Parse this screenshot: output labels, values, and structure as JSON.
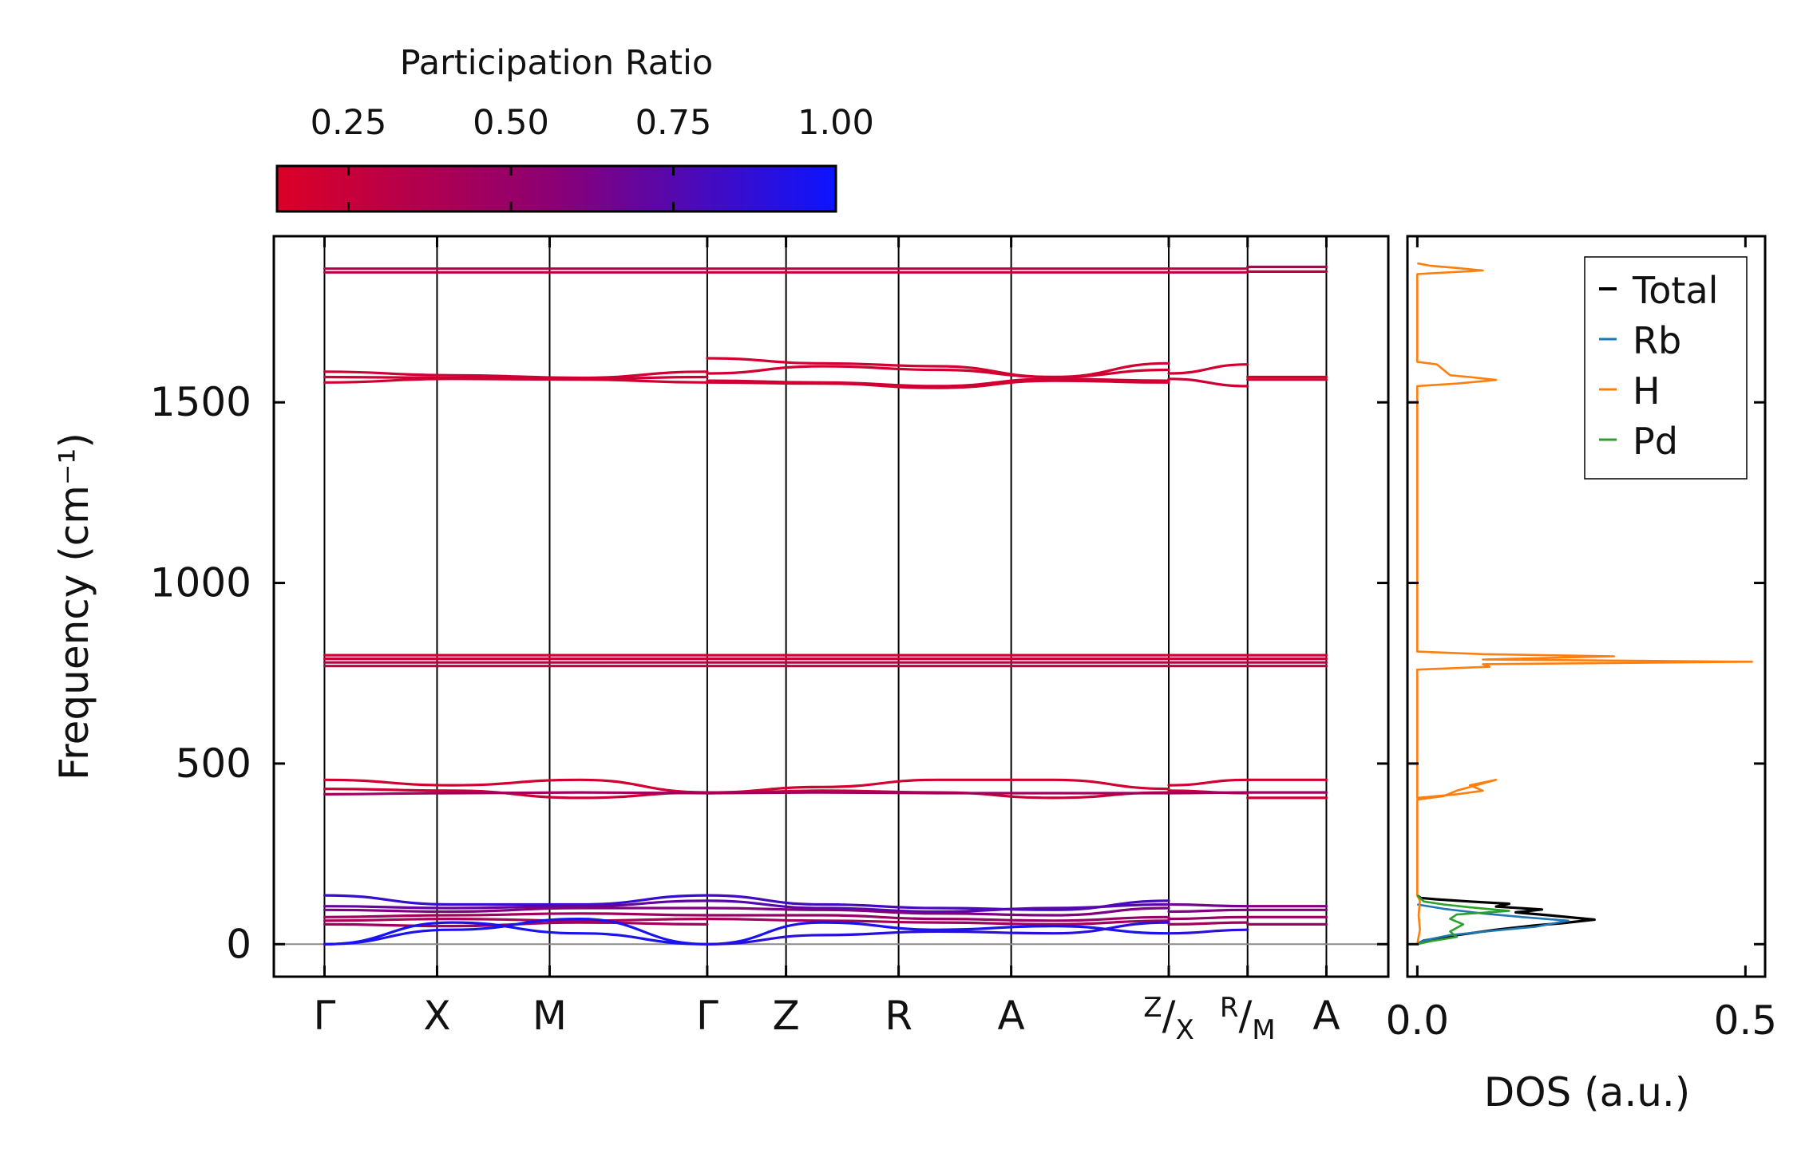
{
  "colorbar": {
    "title": "Participation Ratio",
    "ticks": [
      0.25,
      0.5,
      0.75,
      1.0
    ],
    "tick_labels": [
      "0.25",
      "0.50",
      "0.75",
      "1.00"
    ],
    "range": [
      0.14,
      1.0
    ],
    "colors": {
      "low": "#dc0026",
      "mid": "#8a0074",
      "high": "#0b14ff"
    }
  },
  "chart_data": [
    {
      "type": "line",
      "name": "phonon-band-structure",
      "ylabel": "Frequency (cm⁻¹)",
      "ylim": [
        -90,
        1960
      ],
      "yticks": [
        0,
        500,
        1000,
        1500
      ],
      "ytick_labels": [
        "0",
        "500",
        "1000",
        "1500"
      ],
      "xlim": [
        -0.45,
        9.45
      ],
      "kpoints": [
        {
          "pos": 0,
          "label": "Γ"
        },
        {
          "pos": 1,
          "label": "X"
        },
        {
          "pos": 2,
          "label": "M"
        },
        {
          "pos": 3.4,
          "label": "Γ"
        },
        {
          "pos": 4.1,
          "label": "Z"
        },
        {
          "pos": 5.1,
          "label": "R"
        },
        {
          "pos": 6.1,
          "label": "A"
        },
        {
          "pos": 7.5,
          "label": "Z/X",
          "top": "Z",
          "bottom": "X"
        },
        {
          "pos": 8.2,
          "label": "R/M",
          "top": "R",
          "bottom": "M"
        },
        {
          "pos": 8.9,
          "label": "A"
        }
      ],
      "zero_line": 0,
      "segments": [
        {
          "from": 0,
          "to": 3.4,
          "bands": [
            {
              "y": [
                1870,
                1870,
                1870,
                1870
              ],
              "pr": 0.35
            },
            {
              "y": [
                1860,
                1860,
                1860,
                1860
              ],
              "pr": 0.3
            },
            {
              "y": [
                1585,
                1575,
                1568,
                1585
              ],
              "pr": 0.22
            },
            {
              "y": [
                1570,
                1568,
                1565,
                1570
              ],
              "pr": 0.22
            },
            {
              "y": [
                1555,
                1565,
                1563,
                1555
              ],
              "pr": 0.2
            },
            {
              "y": [
                800,
                800,
                800,
                800
              ],
              "pr": 0.2
            },
            {
              "y": [
                790,
                790,
                790,
                790
              ],
              "pr": 0.25
            },
            {
              "y": [
                780,
                780,
                780,
                780
              ],
              "pr": 0.3
            },
            {
              "y": [
                770,
                770,
                770,
                770
              ],
              "pr": 0.3
            },
            {
              "y": [
                455,
                440,
                455,
                420
              ],
              "pr": 0.2
            },
            {
              "y": [
                430,
                425,
                405,
                420
              ],
              "pr": 0.22
            },
            {
              "y": [
                415,
                418,
                420,
                418
              ],
              "pr": 0.45
            },
            {
              "y": [
                135,
                110,
                110,
                135
              ],
              "pr": 0.85
            },
            {
              "y": [
                105,
                100,
                105,
                120
              ],
              "pr": 0.7
            },
            {
              "y": [
                95,
                90,
                100,
                100
              ],
              "pr": 0.6
            },
            {
              "y": [
                75,
                80,
                85,
                80
              ],
              "pr": 0.45
            },
            {
              "y": [
                65,
                70,
                65,
                70
              ],
              "pr": 0.4
            },
            {
              "y": [
                55,
                50,
                60,
                55
              ],
              "pr": 0.45
            },
            {
              "y": [
                0,
                40,
                70,
                0
              ],
              "pr": 0.95
            },
            {
              "y": [
                0,
                60,
                30,
                0
              ],
              "pr": 0.95
            }
          ]
        },
        {
          "from": 3.4,
          "to": 7.5,
          "bands": [
            {
              "y": [
                1870,
                1870,
                1870,
                1870,
                1870
              ],
              "pr": 0.3
            },
            {
              "y": [
                1860,
                1860,
                1860,
                1860,
                1860
              ],
              "pr": 0.25
            },
            {
              "y": [
                1622,
                1608,
                1600,
                1570,
                1608
              ],
              "pr": 0.2
            },
            {
              "y": [
                1580,
                1600,
                1590,
                1570,
                1590
              ],
              "pr": 0.2
            },
            {
              "y": [
                1560,
                1555,
                1545,
                1565,
                1560
              ],
              "pr": 0.22
            },
            {
              "y": [
                1555,
                1552,
                1540,
                1560,
                1555
              ],
              "pr": 0.2
            },
            {
              "y": [
                800,
                800,
                800,
                800,
                800
              ],
              "pr": 0.2
            },
            {
              "y": [
                790,
                790,
                790,
                790,
                790
              ],
              "pr": 0.25
            },
            {
              "y": [
                780,
                780,
                780,
                780,
                780
              ],
              "pr": 0.3
            },
            {
              "y": [
                770,
                770,
                770,
                770,
                770
              ],
              "pr": 0.3
            },
            {
              "y": [
                420,
                435,
                455,
                455,
                430
              ],
              "pr": 0.2
            },
            {
              "y": [
                418,
                425,
                420,
                405,
                420
              ],
              "pr": 0.25
            },
            {
              "y": [
                418,
                420,
                418,
                418,
                418
              ],
              "pr": 0.45
            },
            {
              "y": [
                135,
                110,
                100,
                95,
                120
              ],
              "pr": 0.8
            },
            {
              "y": [
                120,
                100,
                90,
                100,
                110
              ],
              "pr": 0.75
            },
            {
              "y": [
                100,
                95,
                85,
                80,
                100
              ],
              "pr": 0.6
            },
            {
              "y": [
                80,
                80,
                70,
                65,
                75
              ],
              "pr": 0.5
            },
            {
              "y": [
                70,
                65,
                60,
                55,
                65
              ],
              "pr": 0.45
            },
            {
              "y": [
                0,
                60,
                40,
                50,
                30
              ],
              "pr": 0.95
            },
            {
              "y": [
                0,
                25,
                35,
                30,
                60
              ],
              "pr": 0.9
            }
          ]
        },
        {
          "from": 7.5,
          "to": 8.2,
          "bands": [
            {
              "y": [
                1870,
                1870
              ],
              "pr": 0.3
            },
            {
              "y": [
                1860,
                1860
              ],
              "pr": 0.3
            },
            {
              "y": [
                1580,
                1605
              ],
              "pr": 0.2
            },
            {
              "y": [
                1565,
                1545
              ],
              "pr": 0.22
            },
            {
              "y": [
                800,
                800
              ],
              "pr": 0.2
            },
            {
              "y": [
                790,
                790
              ],
              "pr": 0.25
            },
            {
              "y": [
                780,
                780
              ],
              "pr": 0.3
            },
            {
              "y": [
                770,
                770
              ],
              "pr": 0.3
            },
            {
              "y": [
                440,
                455
              ],
              "pr": 0.2
            },
            {
              "y": [
                425,
                418
              ],
              "pr": 0.25
            },
            {
              "y": [
                418,
                420
              ],
              "pr": 0.45
            },
            {
              "y": [
                110,
                105
              ],
              "pr": 0.65
            },
            {
              "y": [
                90,
                95
              ],
              "pr": 0.6
            },
            {
              "y": [
                70,
                75
              ],
              "pr": 0.5
            },
            {
              "y": [
                55,
                60
              ],
              "pr": 0.45
            },
            {
              "y": [
                30,
                40
              ],
              "pr": 0.9
            }
          ]
        },
        {
          "from": 8.2,
          "to": 8.9,
          "bands": [
            {
              "y": [
                1875,
                1875
              ],
              "pr": 0.35
            },
            {
              "y": [
                1862,
                1862
              ],
              "pr": 0.3
            },
            {
              "y": [
                1570,
                1570
              ],
              "pr": 0.2
            },
            {
              "y": [
                1563,
                1563
              ],
              "pr": 0.2
            },
            {
              "y": [
                800,
                800
              ],
              "pr": 0.2
            },
            {
              "y": [
                790,
                790
              ],
              "pr": 0.25
            },
            {
              "y": [
                780,
                780
              ],
              "pr": 0.3
            },
            {
              "y": [
                770,
                770
              ],
              "pr": 0.3
            },
            {
              "y": [
                455,
                455
              ],
              "pr": 0.2
            },
            {
              "y": [
                420,
                420
              ],
              "pr": 0.45
            },
            {
              "y": [
                405,
                405
              ],
              "pr": 0.22
            },
            {
              "y": [
                105,
                105
              ],
              "pr": 0.6
            },
            {
              "y": [
                95,
                95
              ],
              "pr": 0.6
            },
            {
              "y": [
                75,
                75
              ],
              "pr": 0.5
            },
            {
              "y": [
                55,
                55
              ],
              "pr": 0.45
            }
          ]
        }
      ]
    },
    {
      "type": "line",
      "name": "phonon-dos",
      "xlabel": "DOS (a.u.)",
      "xlim": [
        -0.015,
        0.53
      ],
      "ylim": [
        -90,
        1960
      ],
      "xticks": [
        0.0,
        0.5
      ],
      "xtick_labels": [
        "0.0",
        "0.5"
      ],
      "legend": {
        "placement": "top-right",
        "entries": [
          "Total",
          "Rb",
          "H",
          "Pd"
        ]
      },
      "series": [
        {
          "name": "Total",
          "color": "#000000",
          "points": [
            [
              0,
              0
            ],
            [
              0.01,
              10
            ],
            [
              0.06,
              25
            ],
            [
              0.12,
              40
            ],
            [
              0.18,
              52
            ],
            [
              0.22,
              58
            ],
            [
              0.27,
              68
            ],
            [
              0.2,
              80
            ],
            [
              0.15,
              88
            ],
            [
              0.19,
              96
            ],
            [
              0.12,
              104
            ],
            [
              0.14,
              112
            ],
            [
              0.08,
              118
            ],
            [
              0.03,
              124
            ],
            [
              0.005,
              128
            ],
            [
              0,
              135
            ]
          ]
        },
        {
          "name": "Rb",
          "color": "#1f77b4",
          "points": [
            [
              0,
              0
            ],
            [
              0.01,
              10
            ],
            [
              0.05,
              25
            ],
            [
              0.12,
              38
            ],
            [
              0.18,
              48
            ],
            [
              0.2,
              55
            ],
            [
              0.23,
              65
            ],
            [
              0.16,
              75
            ],
            [
              0.1,
              85
            ],
            [
              0.04,
              98
            ],
            [
              0,
              110
            ]
          ]
        },
        {
          "name": "H",
          "color": "#ff7f0e",
          "points": [
            [
              0,
              0
            ],
            [
              0.004,
              40
            ],
            [
              0.002,
              80
            ],
            [
              0.004,
              120
            ],
            [
              0,
              135
            ],
            [
              0,
              400
            ],
            [
              0.04,
              410
            ],
            [
              0.06,
              425
            ],
            [
              0.12,
              455
            ],
            [
              0.08,
              440
            ],
            [
              0.1,
              425
            ],
            [
              0.06,
              415
            ],
            [
              0,
              405
            ],
            [
              0,
              760
            ],
            [
              0.11,
              768
            ],
            [
              0.1,
              775
            ],
            [
              0.51,
              782
            ],
            [
              0.1,
              788
            ],
            [
              0.3,
              797
            ],
            [
              0.1,
              803
            ],
            [
              0,
              810
            ],
            [
              0,
              1545
            ],
            [
              0.06,
              1552
            ],
            [
              0.12,
              1562
            ],
            [
              0.08,
              1570
            ],
            [
              0.05,
              1575
            ],
            [
              0.04,
              1590
            ],
            [
              0.03,
              1605
            ],
            [
              0,
              1612
            ],
            [
              0,
              1855
            ],
            [
              0.1,
              1865
            ],
            [
              0.06,
              1872
            ],
            [
              0.02,
              1878
            ],
            [
              0,
              1885
            ]
          ]
        },
        {
          "name": "Pd",
          "color": "#2ca02c",
          "points": [
            [
              0,
              0
            ],
            [
              0.02,
              8
            ],
            [
              0.06,
              20
            ],
            [
              0.05,
              35
            ],
            [
              0.07,
              55
            ],
            [
              0.05,
              70
            ],
            [
              0.06,
              82
            ],
            [
              0.14,
              92
            ],
            [
              0.08,
              102
            ],
            [
              0.04,
              110
            ],
            [
              0.01,
              118
            ],
            [
              0.003,
              130
            ],
            [
              0,
              135
            ]
          ]
        }
      ]
    }
  ]
}
